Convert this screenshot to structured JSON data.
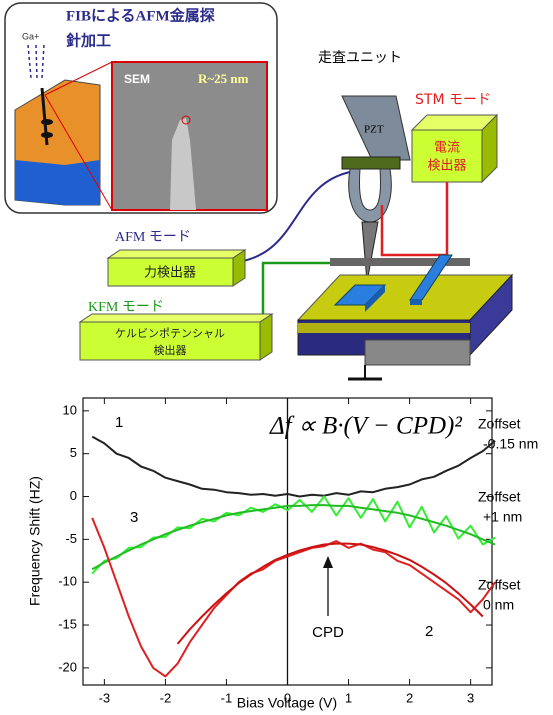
{
  "diagram": {
    "inset": {
      "title_lines": [
        "FIBによるAFM金属探",
        "針加工"
      ],
      "ion": "Ga+",
      "sem_label": "SEM",
      "radius": "R~25 nm"
    },
    "scan_unit": "走査ユニット",
    "pzt": "PZT",
    "stm": {
      "mode": "STM モード",
      "detector": [
        "電流",
        "検出器"
      ]
    },
    "afm": {
      "mode": "AFM モード",
      "detector": "力検出器"
    },
    "kfm": {
      "mode": "KFM モード",
      "detector": [
        "ケルビンポテンシャル",
        "検出器"
      ]
    }
  },
  "chart_data": {
    "type": "line",
    "formula": "Δf ∝ B·(V − CPD)²",
    "xlabel": "Bias Voltage (V)",
    "ylabel": "Frequency Shift (HZ)",
    "curve_labels": [
      "1",
      "3",
      "2"
    ],
    "cpd_label": "CPD",
    "offsets": [
      [
        "Zoffset",
        "-0.15 nm"
      ],
      [
        "Zoffset",
        "+1 nm"
      ],
      [
        "Zoffset",
        "0 nm"
      ]
    ],
    "xlim": [
      -3.35,
      3.35
    ],
    "ylim": [
      -22,
      11.5
    ],
    "xticks": [
      -3,
      -2,
      -1,
      0,
      1,
      2,
      3
    ],
    "yticks": [
      -20,
      -15,
      -10,
      -5,
      0,
      5,
      10
    ],
    "vline": 0,
    "x": [
      -3.2,
      -3.0,
      -2.8,
      -2.6,
      -2.4,
      -2.2,
      -2.0,
      -1.8,
      -1.6,
      -1.4,
      -1.2,
      -1.0,
      -0.8,
      -0.6,
      -0.4,
      -0.2,
      0,
      0.2,
      0.4,
      0.6,
      0.8,
      1.0,
      1.2,
      1.4,
      1.6,
      1.8,
      2.0,
      2.2,
      2.4,
      2.6,
      2.8,
      3.0,
      3.2,
      3.4
    ],
    "series": [
      {
        "color": "#222222",
        "values": [
          7.0,
          6.2,
          5.0,
          4.5,
          3.5,
          3.0,
          2.2,
          1.8,
          1.4,
          0.9,
          0.8,
          0.5,
          0.4,
          0.2,
          0.3,
          0.1,
          0.3,
          0.0,
          0.2,
          0.1,
          0.4,
          0.2,
          0.6,
          0.5,
          0.9,
          1.1,
          1.4,
          2.0,
          2.3,
          3.0,
          3.6,
          4.5,
          5.3,
          6.5
        ]
      },
      {
        "color": "#33ee33",
        "values": [
          -9.0,
          -7.5,
          -7.2,
          -6.0,
          -5.9,
          -4.8,
          -4.7,
          -3.6,
          -3.7,
          -2.6,
          -2.9,
          -1.9,
          -2.2,
          -1.3,
          -1.8,
          -0.9,
          -1.6,
          -0.4,
          -1.8,
          0.0,
          -2.2,
          -0.2,
          -2.5,
          -0.3,
          -2.9,
          -0.6,
          -3.6,
          -1.2,
          -4.2,
          -2.3,
          -4.9,
          -3.4,
          -5.6,
          -4.8
        ]
      },
      {
        "color": "#22bb22",
        "values": [
          -8.5,
          -7.7,
          -7.0,
          -6.3,
          -5.6,
          -5.0,
          -4.4,
          -3.9,
          -3.4,
          -3.0,
          -2.6,
          -2.2,
          -1.9,
          -1.7,
          -1.5,
          -1.3,
          -1.1,
          -1.1,
          -1.0,
          -1.0,
          -1.1,
          -1.1,
          -1.3,
          -1.5,
          -1.7,
          -1.9,
          -2.2,
          -2.6,
          -3.0,
          -3.4,
          -3.9,
          -4.4,
          -5.0,
          -5.6
        ]
      },
      {
        "color": "#e02020",
        "values": [
          -2.5,
          -6,
          -10,
          -14,
          -17.5,
          -20,
          -21,
          -19.5,
          -17,
          -15,
          -13,
          -11.5,
          -10,
          -9,
          -8.5,
          -7.5,
          -7,
          -6.5,
          -6,
          -5.8,
          -5.2,
          -6,
          -5.5,
          -6.2,
          -6.5,
          -7.5,
          -8,
          -9,
          -10,
          -11,
          -12,
          -13.5,
          -12,
          -10
        ]
      },
      {
        "color": "#cc1111",
        "values": [
          null,
          null,
          null,
          null,
          null,
          null,
          null,
          -17.2,
          -15.5,
          -14.0,
          -12.6,
          -11.3,
          -10.1,
          -9.1,
          -8.2,
          -7.4,
          -6.8,
          -6.3,
          -5.9,
          -5.6,
          -5.5,
          -5.5,
          -5.6,
          -5.9,
          -6.3,
          -6.8,
          -7.4,
          -8.2,
          -9.1,
          -10.1,
          -11.3,
          -12.6,
          -14.0,
          null
        ]
      }
    ]
  }
}
